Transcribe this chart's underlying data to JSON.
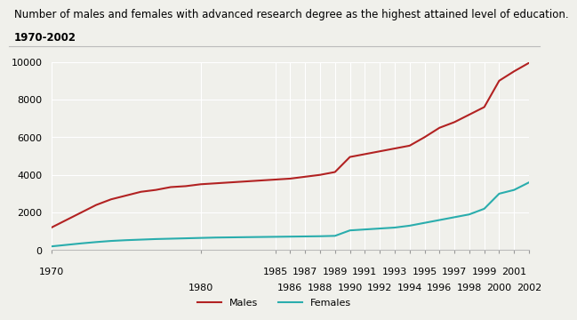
{
  "title_line1": "Number of males and females with advanced research degree as the highest attained level of education.",
  "title_line2": "1970-2002",
  "years": [
    1970,
    1971,
    1972,
    1973,
    1974,
    1975,
    1976,
    1977,
    1978,
    1979,
    1980,
    1981,
    1982,
    1983,
    1984,
    1985,
    1986,
    1987,
    1988,
    1989,
    1990,
    1991,
    1992,
    1993,
    1994,
    1995,
    1996,
    1997,
    1998,
    1999,
    2000,
    2001,
    2002
  ],
  "males": [
    1200,
    1600,
    2000,
    2400,
    2700,
    2900,
    3100,
    3200,
    3350,
    3400,
    3500,
    3550,
    3600,
    3650,
    3700,
    3750,
    3800,
    3900,
    4000,
    4150,
    4950,
    5100,
    5250,
    5400,
    5550,
    6000,
    6500,
    6800,
    7200,
    7600,
    9000,
    9500,
    9950
  ],
  "females": [
    200,
    280,
    360,
    430,
    490,
    530,
    560,
    590,
    610,
    630,
    650,
    670,
    680,
    690,
    700,
    710,
    720,
    730,
    740,
    760,
    1050,
    1100,
    1150,
    1200,
    1300,
    1450,
    1600,
    1750,
    1900,
    2200,
    3000,
    3200,
    3600
  ],
  "male_color": "#b22222",
  "female_color": "#2aadad",
  "background_color": "#f0f0eb",
  "ylim": [
    0,
    10000
  ],
  "yticks": [
    0,
    2000,
    4000,
    6000,
    8000,
    10000
  ],
  "xlim": [
    1970,
    2002
  ],
  "xticks_row1": [
    1970,
    1985,
    1987,
    1989,
    1991,
    1993,
    1995,
    1997,
    1999,
    2001
  ],
  "xticks_row2": [
    1980,
    1986,
    1988,
    1990,
    1992,
    1994,
    1996,
    1998,
    2000,
    2002
  ],
  "legend_labels": [
    "Males",
    "Females"
  ],
  "title_fontsize": 8.5,
  "tick_fontsize": 8.0,
  "line_width": 1.5
}
